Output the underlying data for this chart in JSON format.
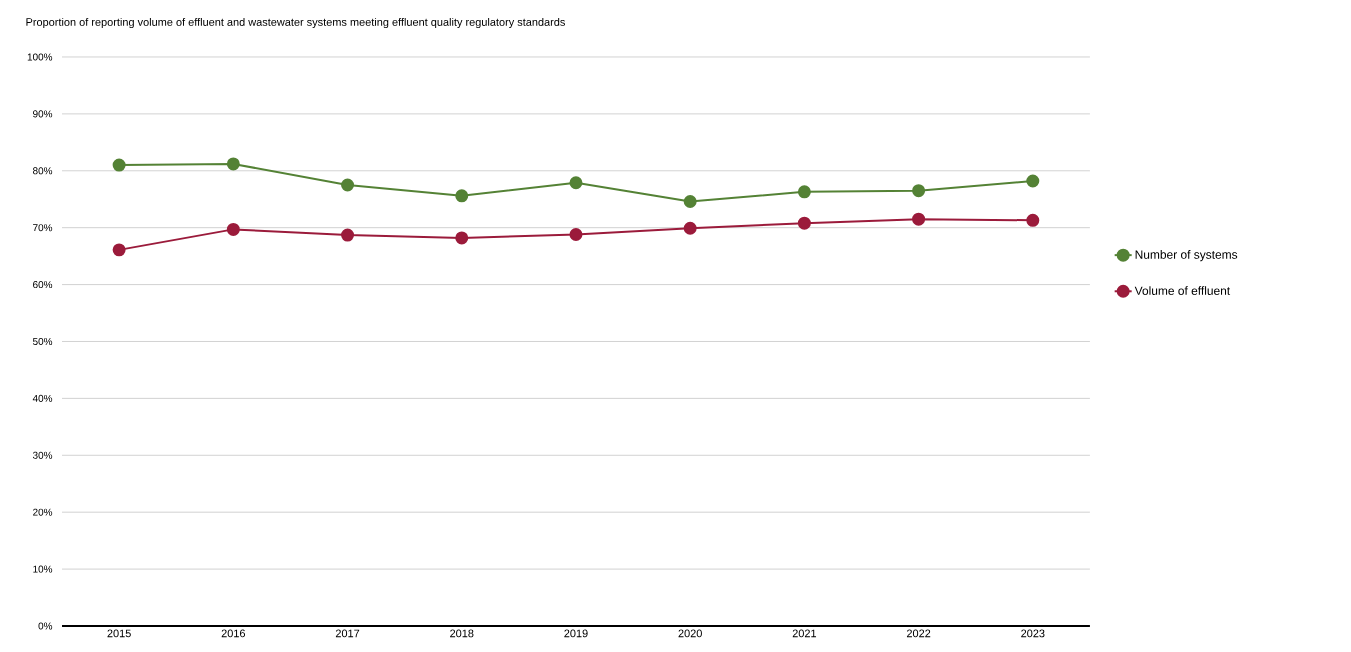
{
  "chart_data": {
    "type": "line",
    "title": "Proportion of reporting volume of effluent and wastewater systems meeting effluent quality regulatory standards",
    "categories": [
      "2015",
      "2016",
      "2017",
      "2018",
      "2019",
      "2020",
      "2021",
      "2022",
      "2023"
    ],
    "series": [
      {
        "name": "Number of systems",
        "color": "#548235",
        "values": [
          81.0,
          81.2,
          77.5,
          75.6,
          77.9,
          74.6,
          76.3,
          76.5,
          78.2
        ]
      },
      {
        "name": "Volume of effluent",
        "color": "#9b1b3b",
        "values": [
          66.1,
          69.7,
          68.7,
          68.2,
          68.8,
          69.9,
          70.8,
          71.5,
          71.3
        ]
      }
    ],
    "ylim": [
      0,
      100
    ],
    "yticks": [
      {
        "value": 0,
        "label": "0%"
      },
      {
        "value": 10,
        "label": "10%"
      },
      {
        "value": 20,
        "label": "20%"
      },
      {
        "value": 30,
        "label": "30%"
      },
      {
        "value": 40,
        "label": "40%"
      },
      {
        "value": 50,
        "label": "50%"
      },
      {
        "value": 60,
        "label": "60%"
      },
      {
        "value": 70,
        "label": "70%"
      },
      {
        "value": 80,
        "label": "80%"
      },
      {
        "value": 90,
        "label": "90%"
      },
      {
        "value": 100,
        "label": "100%"
      }
    ],
    "grid": "y",
    "legend": "right",
    "marker": "circle",
    "line_style": "solid"
  }
}
